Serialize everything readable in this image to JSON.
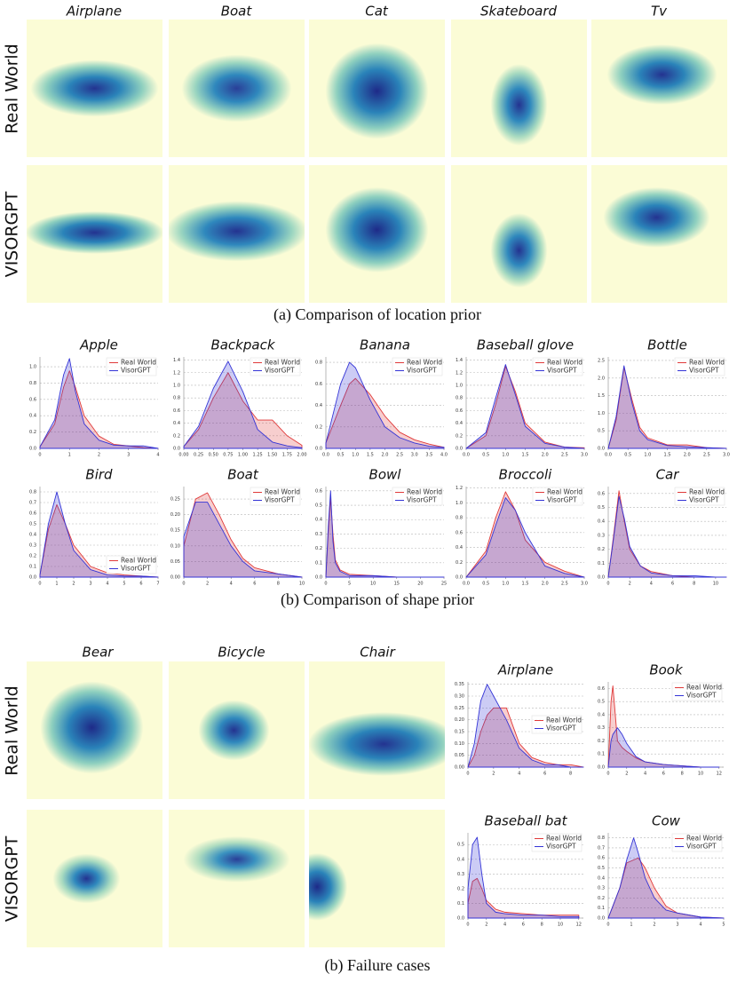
{
  "location_prior": {
    "columns": [
      "Airplane",
      "Boat",
      "Cat",
      "Skateboard",
      "Tv"
    ],
    "rows": [
      "Real World",
      "VISORGPT"
    ],
    "caption": "(a) Comparison of location prior"
  },
  "shape_prior": {
    "caption": "(b) Comparison of shape prior"
  },
  "failure_cases": {
    "columns": [
      "Bear",
      "Bicycle",
      "Chair"
    ],
    "rows": [
      "Real World",
      "VISORGPT"
    ],
    "caption": "(b) Failure cases"
  },
  "chart_data": [
    {
      "type": "area",
      "title": "Apple",
      "legend": "upper right",
      "grid": true,
      "x": [
        0,
        0.5,
        0.8,
        1.0,
        1.2,
        1.5,
        2,
        2.5,
        3,
        3.5,
        4
      ],
      "series": [
        {
          "name": "Real World",
          "color": "#e03a3a",
          "values": [
            0.02,
            0.3,
            0.75,
            0.95,
            0.75,
            0.4,
            0.15,
            0.05,
            0.03,
            0.01,
            0
          ]
        },
        {
          "name": "VisorGPT",
          "color": "#3434d6",
          "values": [
            0.02,
            0.35,
            0.9,
            1.1,
            0.7,
            0.3,
            0.1,
            0.04,
            0.03,
            0.03,
            0
          ]
        }
      ],
      "xlim": [
        0,
        4
      ],
      "xticks": [
        0,
        1,
        2,
        3,
        4
      ],
      "ylim": [
        0,
        1.12
      ],
      "yticks": [
        {
          "value": 0,
          "label": "0.0"
        },
        0.2,
        0.4,
        0.6,
        0.8,
        {
          "value": 1,
          "label": "1.0"
        }
      ]
    },
    {
      "type": "area",
      "title": "Backpack",
      "legend": "upper right",
      "grid": true,
      "x": [
        0,
        0.25,
        0.5,
        0.75,
        1.0,
        1.25,
        1.5,
        1.75,
        2
      ],
      "series": [
        {
          "name": "Real World",
          "color": "#e03a3a",
          "values": [
            0.03,
            0.3,
            0.8,
            1.2,
            0.75,
            0.45,
            0.45,
            0.2,
            0.05
          ]
        },
        {
          "name": "VisorGPT",
          "color": "#3434d6",
          "values": [
            0.03,
            0.35,
            0.95,
            1.38,
            0.9,
            0.3,
            0.1,
            0.04,
            0.01
          ]
        }
      ],
      "xlim": [
        0,
        2
      ],
      "xticks": [
        {
          "value": 0,
          "label": "0.00"
        },
        0.25,
        {
          "value": 0.5,
          "label": "0.50"
        },
        0.75,
        {
          "value": 1,
          "label": "1.00"
        },
        1.25,
        {
          "value": 1.5,
          "label": "1.50"
        },
        1.75,
        {
          "value": 2,
          "label": "2.00"
        }
      ],
      "ylim": [
        0,
        1.45
      ],
      "yticks": [
        {
          "value": 0,
          "label": "0.0"
        },
        0.2,
        0.4,
        0.6,
        0.8,
        {
          "value": 1,
          "label": "1.0"
        },
        1.2,
        1.4
      ]
    },
    {
      "type": "area",
      "title": "Banana",
      "legend": "upper right",
      "grid": true,
      "x": [
        0,
        0.5,
        0.8,
        1.0,
        1.5,
        2,
        2.5,
        3,
        3.5,
        4
      ],
      "series": [
        {
          "name": "Real World",
          "color": "#e03a3a",
          "values": [
            0.05,
            0.4,
            0.6,
            0.65,
            0.5,
            0.3,
            0.15,
            0.08,
            0.04,
            0.01
          ]
        },
        {
          "name": "VisorGPT",
          "color": "#3434d6",
          "values": [
            0.05,
            0.6,
            0.8,
            0.75,
            0.45,
            0.2,
            0.1,
            0.05,
            0.02,
            0.01
          ]
        }
      ],
      "xlim": [
        0,
        4
      ],
      "xticks": [
        {
          "value": 0,
          "label": "0.0"
        },
        0.5,
        {
          "value": 1,
          "label": "1.0"
        },
        1.5,
        {
          "value": 2,
          "label": "2.0"
        },
        2.5,
        {
          "value": 3,
          "label": "3.0"
        },
        3.5,
        {
          "value": 4,
          "label": "4.0"
        }
      ],
      "ylim": [
        0,
        0.85
      ],
      "yticks": [
        {
          "value": 0,
          "label": "0.0"
        },
        0.2,
        0.4,
        0.6,
        0.8
      ]
    },
    {
      "type": "area",
      "title": "Baseball glove",
      "legend": "upper right",
      "grid": true,
      "x": [
        0,
        0.5,
        0.75,
        1.0,
        1.25,
        1.5,
        2,
        2.5,
        3
      ],
      "series": [
        {
          "name": "Real World",
          "color": "#e03a3a",
          "values": [
            0,
            0.2,
            0.7,
            1.3,
            0.9,
            0.4,
            0.1,
            0.02,
            0.01
          ]
        },
        {
          "name": "VisorGPT",
          "color": "#3434d6",
          "values": [
            0,
            0.25,
            0.8,
            1.33,
            0.85,
            0.35,
            0.08,
            0.02,
            0
          ]
        }
      ],
      "xlim": [
        0,
        3
      ],
      "xticks": [
        {
          "value": 0,
          "label": "0.0"
        },
        0.5,
        {
          "value": 1,
          "label": "1.0"
        },
        1.5,
        {
          "value": 2,
          "label": "2.0"
        },
        2.5,
        {
          "value": 3,
          "label": "3.0"
        }
      ],
      "ylim": [
        0,
        1.45
      ],
      "yticks": [
        {
          "value": 0,
          "label": "0.0"
        },
        0.2,
        0.4,
        0.6,
        0.8,
        {
          "value": 1,
          "label": "1.0"
        },
        1.2,
        1.4
      ]
    },
    {
      "type": "area",
      "title": "Bottle",
      "legend": "upper right",
      "grid": true,
      "x": [
        0,
        0.2,
        0.4,
        0.6,
        0.8,
        1.0,
        1.5,
        2,
        2.5,
        3
      ],
      "series": [
        {
          "name": "Real World",
          "color": "#e03a3a",
          "values": [
            0,
            0.8,
            2.3,
            1.4,
            0.6,
            0.3,
            0.1,
            0.1,
            0.02,
            0
          ]
        },
        {
          "name": "VisorGPT",
          "color": "#3434d6",
          "values": [
            0,
            0.9,
            2.35,
            1.3,
            0.5,
            0.25,
            0.08,
            0.05,
            0.02,
            0
          ]
        }
      ],
      "xlim": [
        0,
        3
      ],
      "xticks": [
        {
          "value": 0,
          "label": "0.0"
        },
        0.5,
        {
          "value": 1,
          "label": "1.0"
        },
        1.5,
        {
          "value": 2,
          "label": "2.0"
        },
        2.5,
        {
          "value": 3,
          "label": "3.0"
        }
      ],
      "ylim": [
        0,
        2.6
      ],
      "yticks": [
        {
          "value": 0,
          "label": "0.0"
        },
        0.5,
        {
          "value": 1,
          "label": "1.0"
        },
        1.5,
        {
          "value": 2,
          "label": "2.0"
        },
        2.5
      ]
    },
    {
      "type": "area",
      "title": "Bird",
      "legend": "lower right",
      "grid": true,
      "x": [
        0,
        0.5,
        1,
        1.5,
        2,
        3,
        4,
        5,
        6,
        7
      ],
      "series": [
        {
          "name": "Real World",
          "color": "#e03a3a",
          "values": [
            0.02,
            0.45,
            0.68,
            0.5,
            0.3,
            0.1,
            0.04,
            0.02,
            0.01,
            0
          ]
        },
        {
          "name": "VisorGPT",
          "color": "#3434d6",
          "values": [
            0.02,
            0.5,
            0.8,
            0.5,
            0.25,
            0.07,
            0.02,
            0.01,
            0.01,
            0
          ]
        }
      ],
      "xlim": [
        0,
        7
      ],
      "xticks": [
        0,
        1,
        2,
        3,
        4,
        5,
        6,
        7
      ],
      "ylim": [
        0,
        0.85
      ],
      "yticks": [
        {
          "value": 0,
          "label": "0.0"
        },
        0.1,
        0.2,
        0.3,
        0.4,
        0.5,
        0.6,
        0.7,
        0.8
      ]
    },
    {
      "type": "area",
      "title": "Boat",
      "legend": "upper right",
      "grid": true,
      "x": [
        0,
        1,
        2,
        3,
        4,
        5,
        6,
        8,
        10
      ],
      "series": [
        {
          "name": "Real World",
          "color": "#e03a3a",
          "values": [
            0.1,
            0.25,
            0.27,
            0.2,
            0.12,
            0.06,
            0.03,
            0.01,
            0
          ]
        },
        {
          "name": "VisorGPT",
          "color": "#3434d6",
          "values": [
            0.13,
            0.24,
            0.24,
            0.17,
            0.1,
            0.05,
            0.02,
            0.01,
            0
          ]
        }
      ],
      "xlim": [
        0,
        10
      ],
      "xticks": [
        0,
        2,
        4,
        6,
        8,
        10
      ],
      "ylim": [
        0,
        0.29
      ],
      "yticks": [
        {
          "value": 0,
          "label": "0.00"
        },
        0.05,
        {
          "value": 0.1,
          "label": "0.10"
        },
        0.15,
        {
          "value": 0.2,
          "label": "0.20"
        },
        0.25
      ]
    },
    {
      "type": "area",
      "title": "Bowl",
      "legend": "upper right",
      "grid": true,
      "x": [
        0,
        0.5,
        1,
        1.5,
        2,
        3,
        5,
        10,
        15,
        20,
        25
      ],
      "series": [
        {
          "name": "Real World",
          "color": "#e03a3a",
          "values": [
            0,
            0.3,
            0.55,
            0.3,
            0.12,
            0.05,
            0.02,
            0.01,
            0,
            0,
            0
          ]
        },
        {
          "name": "VisorGPT",
          "color": "#3434d6",
          "values": [
            0,
            0.35,
            0.6,
            0.25,
            0.1,
            0.04,
            0.01,
            0.01,
            0,
            0,
            0
          ]
        }
      ],
      "xlim": [
        0,
        25
      ],
      "xticks": [
        0,
        5,
        10,
        15,
        20,
        25
      ],
      "ylim": [
        0,
        0.63
      ],
      "yticks": [
        {
          "value": 0,
          "label": "0.0"
        },
        0.1,
        0.2,
        0.3,
        0.4,
        0.5,
        0.6
      ]
    },
    {
      "type": "area",
      "title": "Broccoli",
      "legend": "upper right",
      "grid": true,
      "x": [
        0,
        0.5,
        0.75,
        1.0,
        1.25,
        1.5,
        2,
        2.5,
        3
      ],
      "series": [
        {
          "name": "Real World",
          "color": "#e03a3a",
          "values": [
            0,
            0.35,
            0.8,
            1.15,
            0.9,
            0.5,
            0.2,
            0.08,
            0
          ]
        },
        {
          "name": "VisorGPT",
          "color": "#3434d6",
          "values": [
            0,
            0.3,
            0.7,
            1.07,
            0.9,
            0.6,
            0.15,
            0.05,
            0
          ]
        }
      ],
      "xlim": [
        0,
        3
      ],
      "xticks": [
        {
          "value": 0,
          "label": "0.0"
        },
        0.5,
        {
          "value": 1,
          "label": "1.0"
        },
        1.5,
        {
          "value": 2,
          "label": "2.0"
        },
        2.5,
        {
          "value": 3,
          "label": "3.0"
        }
      ],
      "ylim": [
        0,
        1.22
      ],
      "yticks": [
        {
          "value": 0,
          "label": "0.0"
        },
        0.2,
        0.4,
        0.6,
        0.8,
        {
          "value": 1,
          "label": "1.0"
        },
        1.2
      ]
    },
    {
      "type": "area",
      "title": "Car",
      "legend": "upper right",
      "grid": true,
      "x": [
        0,
        0.5,
        1,
        1.5,
        2,
        3,
        4,
        6,
        8,
        10,
        11
      ],
      "series": [
        {
          "name": "Real World",
          "color": "#e03a3a",
          "values": [
            0,
            0.3,
            0.62,
            0.4,
            0.2,
            0.08,
            0.04,
            0.01,
            0,
            0,
            0
          ]
        },
        {
          "name": "VisorGPT",
          "color": "#3434d6",
          "values": [
            0,
            0.28,
            0.58,
            0.42,
            0.22,
            0.08,
            0.03,
            0.01,
            0.01,
            0,
            0
          ]
        }
      ],
      "xlim": [
        0,
        11
      ],
      "xticks": [
        0,
        2,
        4,
        6,
        8,
        10
      ],
      "ylim": [
        0,
        0.65
      ],
      "yticks": [
        {
          "value": 0,
          "label": "0.0"
        },
        0.1,
        0.2,
        0.3,
        0.4,
        0.5,
        0.6
      ]
    },
    {
      "type": "area",
      "title": "Airplane",
      "legend": "center right",
      "grid": true,
      "x": [
        0,
        0.5,
        1,
        1.5,
        2,
        3,
        4,
        5,
        6,
        7,
        8,
        9
      ],
      "series": [
        {
          "name": "Real World",
          "color": "#e03a3a",
          "values": [
            0,
            0.05,
            0.15,
            0.22,
            0.25,
            0.25,
            0.1,
            0.04,
            0.02,
            0.01,
            0.01,
            0
          ]
        },
        {
          "name": "VisorGPT",
          "color": "#3434d6",
          "values": [
            0,
            0.1,
            0.28,
            0.35,
            0.3,
            0.2,
            0.08,
            0.03,
            0.01,
            0.01,
            0,
            0
          ]
        }
      ],
      "xlim": [
        0,
        9
      ],
      "xticks": [
        0,
        2,
        4,
        6,
        8
      ],
      "ylim": [
        0,
        0.36
      ],
      "yticks": [
        {
          "value": 0,
          "label": "0.00"
        },
        0.05,
        {
          "value": 0.1,
          "label": "0.10"
        },
        0.15,
        {
          "value": 0.2,
          "label": "0.20"
        },
        0.25,
        {
          "value": 0.3,
          "label": "0.30"
        },
        0.35
      ]
    },
    {
      "type": "area",
      "title": "Book",
      "legend": "upper right",
      "grid": true,
      "x": [
        0,
        0.3,
        0.5,
        1,
        1.5,
        2,
        3,
        4,
        6,
        8,
        10,
        12
      ],
      "series": [
        {
          "name": "Real World",
          "color": "#e03a3a",
          "values": [
            0,
            0.5,
            0.62,
            0.2,
            0.15,
            0.12,
            0.07,
            0.04,
            0.02,
            0.01,
            0,
            0
          ]
        },
        {
          "name": "VisorGPT",
          "color": "#3434d6",
          "values": [
            0,
            0.2,
            0.25,
            0.3,
            0.25,
            0.18,
            0.08,
            0.04,
            0.02,
            0.01,
            0,
            0
          ]
        }
      ],
      "xlim": [
        0,
        12.5
      ],
      "xticks": [
        0,
        2,
        4,
        6,
        8,
        10,
        12
      ],
      "ylim": [
        0,
        0.65
      ],
      "yticks": [
        {
          "value": 0,
          "label": "0.0"
        },
        0.1,
        0.2,
        0.3,
        0.4,
        0.5,
        0.6
      ]
    },
    {
      "type": "area",
      "title": "Baseball bat",
      "legend": "upper right",
      "grid": true,
      "x": [
        0,
        0.5,
        1,
        1.5,
        2,
        3,
        4,
        6,
        8,
        10,
        12
      ],
      "series": [
        {
          "name": "Real World",
          "color": "#e03a3a",
          "values": [
            0.1,
            0.25,
            0.27,
            0.2,
            0.12,
            0.06,
            0.04,
            0.03,
            0.02,
            0.02,
            0.02
          ]
        },
        {
          "name": "VisorGPT",
          "color": "#3434d6",
          "values": [
            0.2,
            0.5,
            0.55,
            0.3,
            0.1,
            0.04,
            0.03,
            0.02,
            0.02,
            0.01,
            0.01
          ]
        }
      ],
      "xlim": [
        0,
        12.5
      ],
      "xticks": [
        0,
        2,
        4,
        6,
        8,
        10,
        12
      ],
      "ylim": [
        0,
        0.58
      ],
      "yticks": [
        {
          "value": 0,
          "label": "0.0"
        },
        0.1,
        0.2,
        0.3,
        0.4,
        0.5
      ]
    },
    {
      "type": "area",
      "title": "Cow",
      "legend": "upper right",
      "grid": true,
      "x": [
        0,
        0.5,
        0.8,
        1.1,
        1.3,
        1.6,
        2,
        2.5,
        3,
        4,
        5
      ],
      "series": [
        {
          "name": "Real World",
          "color": "#e03a3a",
          "values": [
            0,
            0.3,
            0.55,
            0.58,
            0.6,
            0.5,
            0.3,
            0.12,
            0.05,
            0.01,
            0
          ]
        },
        {
          "name": "VisorGPT",
          "color": "#3434d6",
          "values": [
            0,
            0.3,
            0.58,
            0.8,
            0.65,
            0.4,
            0.2,
            0.08,
            0.05,
            0.01,
            0
          ]
        }
      ],
      "xlim": [
        0,
        5
      ],
      "xticks": [
        0,
        1,
        2,
        3,
        4,
        5
      ],
      "ylim": [
        0,
        0.85
      ],
      "yticks": [
        {
          "value": 0,
          "label": "0.0"
        },
        0.1,
        0.2,
        0.3,
        0.4,
        0.5,
        0.6,
        0.7,
        0.8
      ]
    }
  ]
}
